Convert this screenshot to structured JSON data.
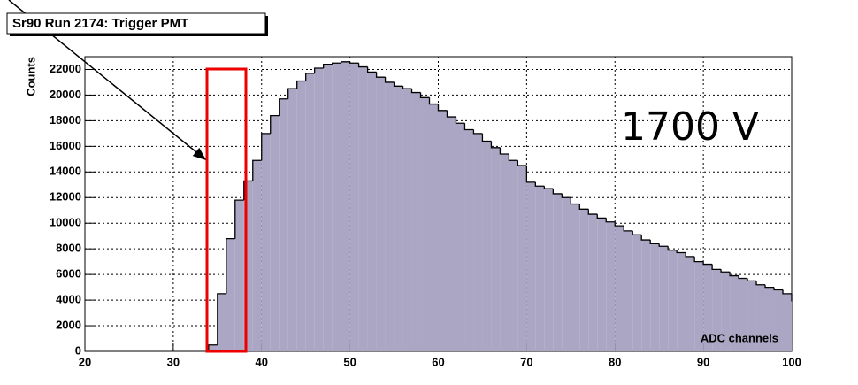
{
  "chart_data": {
    "type": "histogram",
    "title": "Sr90 Run 2174: Trigger PMT",
    "x_label": "ADC channels",
    "y_label": "Counts",
    "annotation": "1700 V",
    "bins": [
      34,
      35,
      36,
      37,
      38,
      39,
      40,
      41,
      42,
      43,
      44,
      45,
      46,
      47,
      48,
      49,
      50,
      51,
      52,
      53,
      54,
      55,
      56,
      57,
      58,
      59,
      60,
      61,
      62,
      63,
      64,
      65,
      66,
      67,
      68,
      69,
      70,
      71,
      72,
      73,
      74,
      75,
      76,
      77,
      78,
      79,
      80,
      81,
      82,
      83,
      84,
      85,
      86,
      87,
      88,
      89,
      90,
      91,
      92,
      93,
      94,
      95,
      96,
      97,
      98,
      99,
      100
    ],
    "values": [
      500,
      4500,
      8800,
      11800,
      13300,
      14900,
      17000,
      18400,
      19700,
      20500,
      21100,
      21700,
      22100,
      22400,
      22500,
      22600,
      22500,
      22200,
      21800,
      21400,
      21000,
      20700,
      20500,
      20200,
      19800,
      19300,
      18800,
      18300,
      17800,
      17300,
      17000,
      16400,
      15900,
      15400,
      14900,
      14500,
      13200,
      12900,
      12700,
      12300,
      12000,
      11500,
      11100,
      10700,
      10400,
      10100,
      9800,
      9400,
      9100,
      8700,
      8400,
      8200,
      7900,
      7700,
      7400,
      7000,
      6800,
      6400,
      6200,
      5900,
      5700,
      5500,
      5200,
      5000,
      4800,
      4500,
      3900
    ],
    "color": "#aaa6c3",
    "xlim": [
      20,
      100
    ],
    "xticks": [
      20,
      30,
      40,
      50,
      60,
      70,
      80,
      90,
      100
    ],
    "ylim": [
      0,
      23000
    ],
    "yticks": [
      0,
      2000,
      4000,
      6000,
      8000,
      10000,
      12000,
      14000,
      16000,
      18000,
      20000,
      22000
    ],
    "grid": true
  }
}
